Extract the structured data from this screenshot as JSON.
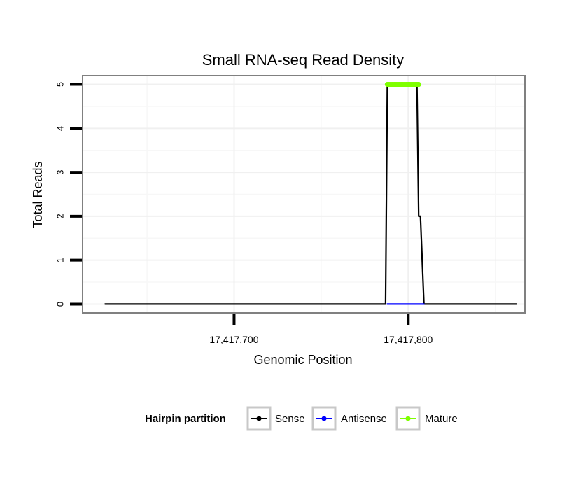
{
  "chart_data": {
    "type": "line",
    "title": "Small RNA-seq Read Density",
    "xlabel": "Genomic Position",
    "ylabel": "Total Reads",
    "xlim": [
      17417613,
      17417867
    ],
    "ylim": [
      -0.2,
      5.2
    ],
    "x_ticks": [
      {
        "value": 17417700,
        "label": "17,417,700"
      },
      {
        "value": 17417800,
        "label": "17,417,800"
      }
    ],
    "y_ticks": [
      {
        "value": 0,
        "label": "0"
      },
      {
        "value": 1,
        "label": "1"
      },
      {
        "value": 2,
        "label": "2"
      },
      {
        "value": 3,
        "label": "3"
      },
      {
        "value": 4,
        "label": "4"
      },
      {
        "value": 5,
        "label": "5"
      }
    ],
    "grid": true,
    "legend": {
      "title": "Hairpin partition",
      "placement": "bottom",
      "entries": [
        {
          "name": "Sense",
          "color": "#000000"
        },
        {
          "name": "Antisense",
          "color": "#0000ff"
        },
        {
          "name": "Mature",
          "color": "#7fff00"
        }
      ]
    },
    "series": [
      {
        "name": "Sense",
        "color": "#000000",
        "x": [
          17417626,
          17417787,
          17417788,
          17417805,
          17417806,
          17417807,
          17417809,
          17417862
        ],
        "y": [
          0,
          0,
          5,
          5,
          2,
          2,
          0,
          0
        ]
      },
      {
        "name": "Antisense",
        "color": "#0000ff",
        "x": [
          17417788,
          17417809
        ],
        "y": [
          0,
          0
        ]
      },
      {
        "name": "Mature",
        "color": "#7fff00",
        "x": [
          17417788,
          17417789,
          17417790,
          17417791,
          17417792,
          17417793,
          17417794,
          17417795,
          17417796,
          17417797,
          17417798,
          17417799,
          17417800,
          17417801,
          17417802,
          17417803,
          17417804,
          17417805,
          17417806
        ],
        "y": [
          5,
          5,
          5,
          5,
          5,
          5,
          5,
          5,
          5,
          5,
          5,
          5,
          5,
          5,
          5,
          5,
          5,
          5,
          5
        ]
      }
    ]
  }
}
